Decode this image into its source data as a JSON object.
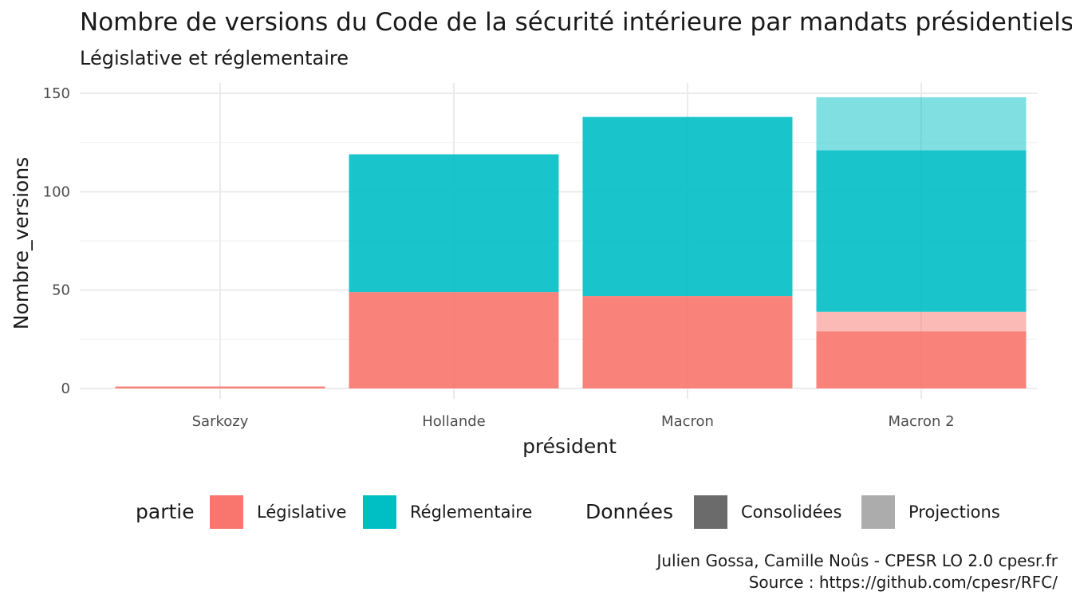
{
  "chart_data": {
    "type": "bar",
    "stacked": true,
    "title": "Nombre de versions du Code de la sécurité intérieure par mandats présidentiels",
    "subtitle": "Législative et réglementaire",
    "xlabel": "président",
    "ylabel": "Nombre_versions",
    "categories": [
      "Sarkozy",
      "Hollande",
      "Macron",
      "Macron 2"
    ],
    "ylim": [
      0,
      150
    ],
    "yticks": [
      0,
      50,
      100,
      150
    ],
    "grid": true,
    "series": [
      {
        "name": "Législative",
        "data_kind": "Consolidées",
        "color": "#F8766D",
        "opacity": 0.9,
        "values": [
          1,
          49,
          47,
          29
        ]
      },
      {
        "name": "Législative",
        "data_kind": "Projections",
        "color": "#F8766D",
        "opacity": 0.5,
        "values": [
          0,
          0,
          0,
          10
        ]
      },
      {
        "name": "Réglementaire",
        "data_kind": "Consolidées",
        "color": "#00BFC4",
        "opacity": 0.9,
        "values": [
          0,
          70,
          91,
          82
        ]
      },
      {
        "name": "Réglementaire",
        "data_kind": "Projections",
        "color": "#00BFC4",
        "opacity": 0.5,
        "values": [
          0,
          0,
          0,
          27
        ]
      }
    ],
    "legend": {
      "placement": "bottom",
      "groups": [
        {
          "title": "partie",
          "items": [
            {
              "label": "Législative",
              "color": "#F8766D"
            },
            {
              "label": "Réglementaire",
              "color": "#00BFC4"
            }
          ]
        },
        {
          "title": "Données",
          "items": [
            {
              "label": "Consolidées",
              "color": "#6b6b6b"
            },
            {
              "label": "Projections",
              "color": "#acacac"
            }
          ]
        }
      ]
    }
  },
  "caption": {
    "line1": "Julien Gossa, Camille Noûs - CPESR LO 2.0 cpesr.fr",
    "line2": "Source : https://github.com/cpesr/RFC/"
  }
}
